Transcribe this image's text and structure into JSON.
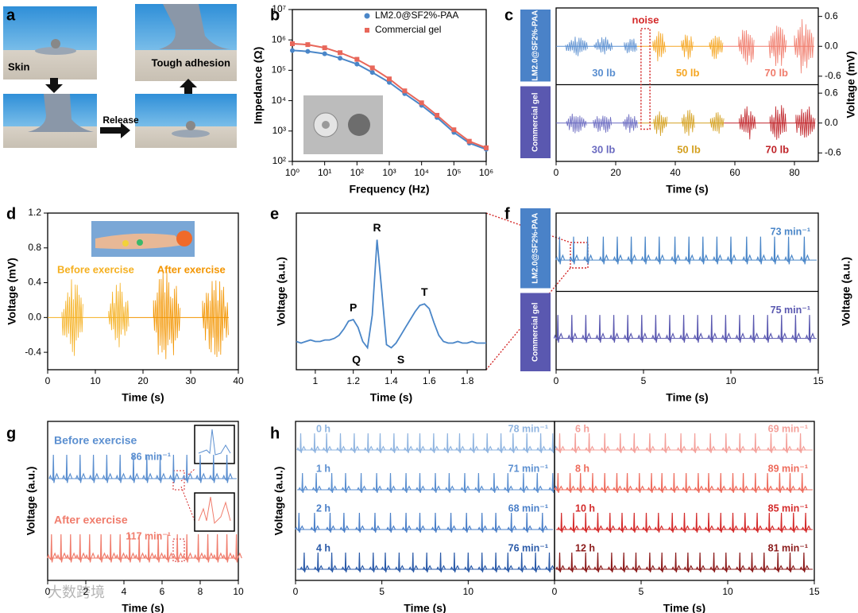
{
  "figure": {
    "panel_a": {
      "label": "a",
      "captions": [
        "Skin",
        "Tough adhesion",
        "Release"
      ]
    },
    "watermark": "大数跨境"
  },
  "chart_data": [
    {
      "panel": "b",
      "type": "scatter",
      "xlabel": "Frequency (Hz)",
      "ylabel": "Impedance (Ω)",
      "log_x": true,
      "log_y": true,
      "legend": "top-right",
      "x": [
        1,
        3,
        10,
        30,
        100,
        300,
        1000,
        3000,
        10000,
        30000,
        100000,
        300000,
        1000000
      ],
      "series": [
        {
          "name": "LM2.0@SF2%-PAA",
          "color": "#4a86c8",
          "marker": "circle",
          "values": [
            450000,
            420000,
            350000,
            250000,
            160000,
            85000,
            40000,
            17000,
            7000,
            2800,
            900,
            400,
            250
          ]
        },
        {
          "name": "Commercial gel",
          "color": "#e8675a",
          "marker": "square",
          "values": [
            750000,
            700000,
            550000,
            380000,
            230000,
            120000,
            52000,
            21000,
            8500,
            3300,
            1100,
            460,
            280
          ]
        }
      ],
      "xlim": [
        1,
        1000000
      ],
      "ylim": [
        100,
        10000000
      ],
      "xticks": [
        {
          "value": 1,
          "label": "10⁰"
        },
        {
          "value": 10,
          "label": "10¹"
        },
        {
          "value": 100,
          "label": "10²"
        },
        {
          "value": 1000,
          "label": "10³"
        },
        {
          "value": 10000,
          "label": "10⁴"
        },
        {
          "value": 100000,
          "label": "10⁵"
        },
        {
          "value": 1000000,
          "label": "10⁶"
        }
      ],
      "yticks": [
        {
          "value": 100,
          "label": "10²"
        },
        {
          "value": 1000,
          "label": "10³"
        },
        {
          "value": 10000,
          "label": "10⁴"
        },
        {
          "value": 100000,
          "label": "10⁵"
        },
        {
          "value": 1000000,
          "label": "10⁶"
        },
        {
          "value": 10000000,
          "label": "10⁷"
        }
      ]
    },
    {
      "panel": "c",
      "type": "emg",
      "xlabel": "Time (s)",
      "ylabel": "Voltage (mV)",
      "annotation": "noise",
      "xlim": [
        0,
        88
      ],
      "xticks": [
        0,
        20,
        40,
        60,
        80
      ],
      "ylim": [
        -0.77,
        0.77
      ],
      "yticks": [
        0.6,
        {
          "value": 0,
          "label": "0.0"
        },
        -0.6
      ],
      "rows": [
        {
          "name": "LM2.0@SF2%-PAA",
          "groups": [
            {
              "label": "30 lb",
              "color": "#5b8fd0",
              "bursts": [
                [
                  3.2,
                  10.7,
                  0.2
                ],
                [
                  12.8,
                  19.2,
                  0.2
                ],
                [
                  22.9,
                  27.2,
                  0.2
                ]
              ]
            },
            {
              "label": "50 lb",
              "color": "#f5a623",
              "bursts": [
                [
                  32.5,
                  36.8,
                  0.32
                ],
                [
                  42.1,
                  46.1,
                  0.3
                ],
                [
                  51.5,
                  56,
                  0.3
                ]
              ]
            },
            {
              "label": "70 lb",
              "color": "#f07c6c",
              "bursts": [
                [
                  61.3,
                  66.7,
                  0.55
                ],
                [
                  71.5,
                  77.3,
                  0.5
                ],
                [
                  80,
                  86.7,
                  0.6
                ]
              ]
            }
          ]
        },
        {
          "name": "Commercial gel",
          "groups": [
            {
              "label": "30 lb",
              "color": "#6a6ac0",
              "bursts": [
                [
                  3.5,
                  10.5,
                  0.22
                ],
                [
                  12.5,
                  18.8,
                  0.22
                ],
                [
                  22.5,
                  27.5,
                  0.2
                ]
              ]
            },
            {
              "label": "50 lb",
              "color": "#d4a020",
              "bursts": [
                [
                  32.8,
                  37.5,
                  0.3
                ],
                [
                  42.3,
                  46.5,
                  0.3
                ],
                [
                  51.8,
                  56.3,
                  0.28
                ]
              ]
            },
            {
              "label": "70 lb",
              "color": "#c0252a",
              "bursts": [
                [
                  61.5,
                  67,
                  0.42
                ],
                [
                  71.8,
                  77.5,
                  0.4
                ],
                [
                  80.5,
                  87,
                  0.42
                ]
              ]
            }
          ]
        }
      ]
    },
    {
      "panel": "d",
      "type": "emg",
      "xlabel": "Time (s)",
      "ylabel": "Voltage (mV)",
      "xlim": [
        0,
        40
      ],
      "xticks": [
        0,
        10,
        20,
        30,
        40
      ],
      "ylim": [
        -0.6,
        1.2
      ],
      "yticks": [
        -0.4,
        {
          "value": 0,
          "label": "0.0"
        },
        0.4,
        0.8,
        1.2
      ],
      "rows": [
        {
          "groups": [
            {
              "label": "Before exercise",
              "color": "#f5b020",
              "bursts": [
                [
                  3,
                  7.5,
                  0.45
                ],
                [
                  12.8,
                  17,
                  0.42
                ]
              ]
            },
            {
              "label": "After exercise",
              "color": "#f39500",
              "bursts": [
                [
                  22.2,
                  27.8,
                  0.6
                ],
                [
                  32.5,
                  38,
                  0.5
                ]
              ]
            }
          ]
        }
      ]
    },
    {
      "panel": "e",
      "type": "line",
      "xlabel": "Time (s)",
      "ylabel": "Voltage (a.u.)",
      "color": "#4a86c8",
      "xlim": [
        0.9,
        1.9
      ],
      "xticks": [
        1.0,
        1.2,
        1.4,
        1.6,
        1.8
      ],
      "ylim": [
        0,
        1
      ],
      "x": [
        0.9,
        0.925,
        0.95,
        0.975,
        1.0,
        1.025,
        1.05,
        1.075,
        1.1,
        1.125,
        1.15,
        1.175,
        1.2,
        1.225,
        1.25,
        1.275,
        1.3,
        1.325,
        1.35,
        1.375,
        1.4,
        1.425,
        1.45,
        1.475,
        1.5,
        1.525,
        1.55,
        1.575,
        1.6,
        1.625,
        1.65,
        1.675,
        1.7,
        1.725,
        1.75,
        1.775,
        1.8,
        1.825,
        1.85,
        1.875,
        1.9
      ],
      "values": [
        0.18,
        0.17,
        0.18,
        0.19,
        0.18,
        0.18,
        0.19,
        0.19,
        0.2,
        0.22,
        0.26,
        0.31,
        0.32,
        0.27,
        0.18,
        0.14,
        0.35,
        0.83,
        0.5,
        0.16,
        0.14,
        0.17,
        0.22,
        0.27,
        0.32,
        0.37,
        0.41,
        0.42,
        0.39,
        0.3,
        0.22,
        0.18,
        0.17,
        0.17,
        0.18,
        0.17,
        0.17,
        0.18,
        0.17,
        0.17,
        0.17
      ],
      "annotations": [
        "P",
        "Q",
        "R",
        "S",
        "T"
      ]
    },
    {
      "panel": "f",
      "type": "ecg",
      "xlabel": "Time (s)",
      "ylabel": "Voltage (a.u.)",
      "xlim": [
        0,
        15
      ],
      "xticks": [
        0,
        5,
        10,
        15
      ],
      "rows": [
        {
          "name": "LM2.0@SF2%-PAA",
          "rate": "73 min⁻¹",
          "color": "#4a86c8",
          "beats": [
            0.2,
            1.0,
            1.8,
            2.7,
            3.5,
            4.3,
            5.1,
            5.9,
            6.8,
            7.6,
            8.4,
            9.2,
            10.0,
            10.9,
            11.7,
            12.5,
            13.3,
            14.2
          ]
        },
        {
          "name": "Commercial gel",
          "rate": "75 min⁻¹",
          "color": "#5a58b0",
          "beats": [
            0.1,
            0.9,
            1.7,
            2.5,
            3.3,
            4.1,
            4.9,
            5.7,
            6.5,
            7.3,
            8.1,
            8.9,
            9.7,
            10.5,
            11.3,
            12.1,
            12.9,
            13.7,
            14.5
          ]
        }
      ]
    },
    {
      "panel": "g",
      "type": "ecg",
      "xlabel": "Time (s)",
      "ylabel": "Voltage (a.u.)",
      "xlim": [
        0,
        10
      ],
      "xticks": [
        0,
        2,
        4,
        6,
        8,
        10
      ],
      "rows": [
        {
          "label": "Before exercise",
          "rate": "86 min⁻¹",
          "color": "#5b8fd0",
          "beats": [
            0.3,
            1.0,
            1.7,
            2.4,
            3.1,
            3.8,
            4.5,
            5.2,
            5.9,
            6.6,
            7.3,
            8.0,
            8.7,
            9.4
          ]
        },
        {
          "label": "After exercise",
          "rate": "117 min⁻¹",
          "color": "#f07c6c",
          "beats": [
            0.2,
            0.7,
            1.2,
            1.7,
            2.2,
            2.8,
            3.3,
            3.8,
            4.3,
            4.8,
            5.3,
            5.8,
            6.3,
            6.8,
            7.3,
            7.9,
            8.4,
            8.9,
            9.4,
            9.9
          ]
        }
      ]
    },
    {
      "panel": "h",
      "type": "ecg",
      "xlabel": "Time (s)",
      "ylabel": "Voltage (a.u.)",
      "xlim": [
        0,
        15
      ],
      "xticks": [
        0,
        5,
        10
      ],
      "rows": [
        {
          "label": "0 h",
          "rate": "78 min⁻¹",
          "color": "#8fb4e0",
          "beats": [
            0.3,
            1.1,
            1.8,
            2.6,
            3.4,
            4.2,
            4.9,
            5.7,
            6.5,
            7.2,
            8.0,
            8.8,
            9.5,
            10.3,
            11.1,
            11.9,
            12.6,
            13.4,
            14.2,
            14.9
          ]
        },
        {
          "label": "1 h",
          "rate": "71 min⁻¹",
          "color": "#5b8fd0",
          "beats": [
            0.4,
            1.2,
            2.1,
            2.9,
            3.8,
            4.7,
            5.5,
            6.4,
            7.2,
            8.1,
            8.9,
            9.8,
            10.6,
            11.5,
            12.3,
            13.2,
            14.0,
            14.9
          ]
        },
        {
          "label": "2 h",
          "rate": "68 min⁻¹",
          "color": "#4a7fc8",
          "beats": [
            0.2,
            1.1,
            2.0,
            2.8,
            3.7,
            4.6,
            5.5,
            6.4,
            7.2,
            8.1,
            9.0,
            9.9,
            10.8,
            11.6,
            12.5,
            13.4,
            14.3
          ]
        },
        {
          "label": "4 h",
          "rate": "76 min⁻¹",
          "color": "#2a5aa8",
          "beats": [
            0.5,
            1.3,
            2.1,
            2.9,
            3.7,
            4.5,
            5.2,
            6.0,
            6.8,
            7.6,
            8.4,
            9.2,
            10.0,
            10.8,
            11.6,
            12.3,
            13.1,
            13.9,
            14.7
          ]
        }
      ]
    },
    {
      "type": "ecg",
      "xlabel": "Time (s)",
      "xlim": [
        0,
        15
      ],
      "xticks": [
        0,
        5,
        10,
        15
      ],
      "rows": [
        {
          "label": "6 h",
          "rate": "69 min⁻¹",
          "color": "#f4a09a",
          "beats": [
            0.3,
            1.2,
            2.0,
            2.9,
            3.8,
            4.6,
            5.5,
            6.4,
            7.3,
            8.1,
            9.0,
            9.9,
            10.7,
            11.6,
            12.5,
            13.4,
            14.2
          ]
        },
        {
          "label": "8 h",
          "rate": "89 min⁻¹",
          "color": "#ee6b5c",
          "beats": [
            0.2,
            0.9,
            1.5,
            2.2,
            2.9,
            3.6,
            4.2,
            4.9,
            5.6,
            6.2,
            6.9,
            7.6,
            8.3,
            8.9,
            9.6,
            10.3,
            10.9,
            11.6,
            12.3,
            13.0,
            13.6,
            14.3
          ]
        },
        {
          "label": "10 h",
          "rate": "85 min⁻¹",
          "color": "#d42a2a",
          "beats": [
            0.4,
            1.1,
            1.8,
            2.5,
            3.2,
            3.9,
            4.6,
            5.3,
            6.0,
            6.8,
            7.5,
            8.2,
            8.9,
            9.6,
            10.3,
            11.0,
            11.7,
            12.4,
            13.1,
            13.8,
            14.5
          ]
        },
        {
          "label": "12 h",
          "rate": "81 min⁻¹",
          "color": "#8b1a1a",
          "beats": [
            0.3,
            1.0,
            1.8,
            2.5,
            3.3,
            4.0,
            4.7,
            5.5,
            6.2,
            7.0,
            7.7,
            8.4,
            9.2,
            9.9,
            10.7,
            11.4,
            12.1,
            12.9,
            13.6,
            14.4
          ]
        }
      ]
    }
  ]
}
